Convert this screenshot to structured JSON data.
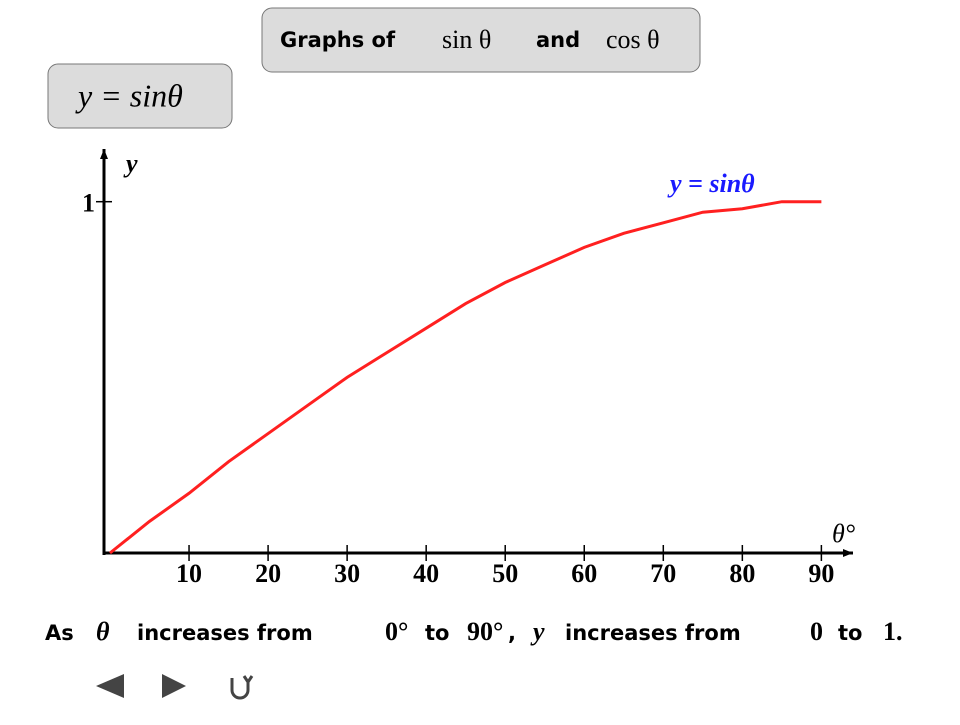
{
  "header": {
    "title_parts": [
      "Graphs of",
      "sin θ",
      "and",
      "cos θ"
    ],
    "subtitle": "y = sinθ"
  },
  "chart_data": {
    "type": "line",
    "x_label": "θ°",
    "y_label": "y",
    "x": [
      0,
      5,
      10,
      15,
      20,
      25,
      30,
      35,
      40,
      45,
      50,
      55,
      60,
      65,
      70,
      75,
      80,
      85,
      90
    ],
    "series": [
      {
        "name": "y = sinθ",
        "color": "#ff2020",
        "values": [
          0,
          0.09,
          0.17,
          0.26,
          0.34,
          0.42,
          0.5,
          0.57,
          0.64,
          0.71,
          0.77,
          0.82,
          0.87,
          0.91,
          0.94,
          0.97,
          0.98,
          1.0,
          1.0
        ]
      }
    ],
    "xlim": [
      0,
      94
    ],
    "ylim": [
      0,
      1.15
    ],
    "xticks": [
      10,
      20,
      30,
      40,
      50,
      60,
      70,
      80,
      90
    ],
    "yticks": [
      1
    ]
  },
  "sentence": [
    "As",
    "θ",
    "increases from",
    "0°",
    "to",
    "90°",
    ",",
    "y",
    "increases from",
    "0",
    "to",
    "1."
  ]
}
